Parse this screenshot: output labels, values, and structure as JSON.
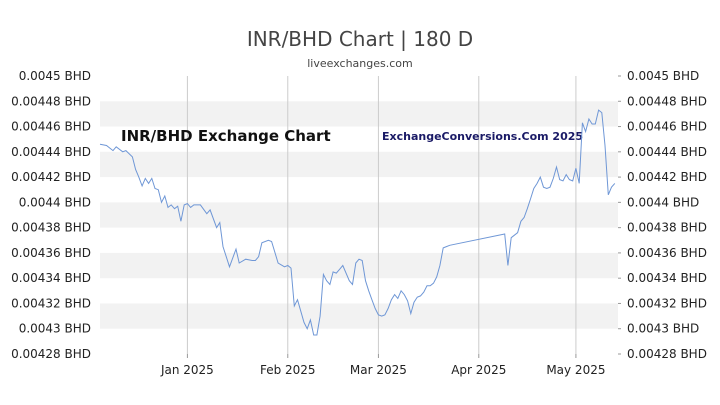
{
  "colors": {
    "line": "#6f97d6",
    "band": "#f2f2f2",
    "grid": "#cccccc",
    "text": "#222222"
  },
  "chart_data": {
    "type": "line",
    "title": "INR/BHD Chart | 180 D",
    "subtitle": "liveexchanges.com",
    "watermark_left": "INR/BHD Exchange Chart",
    "watermark_right": "ExchangeConversions.Com 2025",
    "x_labels": [
      "Jan 2025",
      "Feb 2025",
      "Mar 2025",
      "Apr 2025",
      "May 2025"
    ],
    "x_start": "2024-12-05",
    "x_end": "2025-05-14",
    "y_ticks": [
      "0.0045 BHD",
      "0.00448 BHD",
      "0.00446 BHD",
      "0.00444 BHD",
      "0.00442 BHD",
      "0.0044 BHD",
      "0.00438 BHD",
      "0.00436 BHD",
      "0.00434 BHD",
      "0.00432 BHD",
      "0.0043 BHD",
      "0.00428 BHD"
    ],
    "ylim": [
      0.00428,
      0.0045
    ],
    "grid": true,
    "series": [
      {
        "values": [
          [
            "2024-12-05",
            0.004446
          ],
          [
            "2024-12-07",
            0.004445
          ],
          [
            "2024-12-09",
            0.004441
          ],
          [
            "2024-12-10",
            0.004444
          ],
          [
            "2024-12-12",
            0.00444
          ],
          [
            "2024-12-13",
            0.004441
          ],
          [
            "2024-12-15",
            0.004436
          ],
          [
            "2024-12-16",
            0.004426
          ],
          [
            "2024-12-17",
            0.00442
          ],
          [
            "2024-12-18",
            0.004413
          ],
          [
            "2024-12-19",
            0.004419
          ],
          [
            "2024-12-20",
            0.004415
          ],
          [
            "2024-12-21",
            0.004419
          ],
          [
            "2024-12-22",
            0.004411
          ],
          [
            "2024-12-23",
            0.00441
          ],
          [
            "2024-12-24",
            0.0044
          ],
          [
            "2024-12-25",
            0.004405
          ],
          [
            "2024-12-26",
            0.004396
          ],
          [
            "2024-12-27",
            0.004398
          ],
          [
            "2024-12-28",
            0.004395
          ],
          [
            "2024-12-29",
            0.004397
          ],
          [
            "2024-12-30",
            0.004385
          ],
          [
            "2024-12-31",
            0.004398
          ],
          [
            "2025-01-01",
            0.004399
          ],
          [
            "2025-01-02",
            0.004396
          ],
          [
            "2025-01-03",
            0.004398
          ],
          [
            "2025-01-05",
            0.004398
          ],
          [
            "2025-01-07",
            0.004391
          ],
          [
            "2025-01-08",
            0.004394
          ],
          [
            "2025-01-10",
            0.00438
          ],
          [
            "2025-01-11",
            0.004384
          ],
          [
            "2025-01-12",
            0.004365
          ],
          [
            "2025-01-14",
            0.004349
          ],
          [
            "2025-01-16",
            0.004363
          ],
          [
            "2025-01-17",
            0.004352
          ],
          [
            "2025-01-19",
            0.004355
          ],
          [
            "2025-01-21",
            0.004354
          ],
          [
            "2025-01-22",
            0.004354
          ],
          [
            "2025-01-23",
            0.004357
          ],
          [
            "2025-01-24",
            0.004368
          ],
          [
            "2025-01-26",
            0.00437
          ],
          [
            "2025-01-27",
            0.004369
          ],
          [
            "2025-01-29",
            0.004352
          ],
          [
            "2025-01-31",
            0.004349
          ],
          [
            "2025-02-01",
            0.00435
          ],
          [
            "2025-02-02",
            0.004348
          ],
          [
            "2025-02-03",
            0.004318
          ],
          [
            "2025-02-04",
            0.004323
          ],
          [
            "2025-02-06",
            0.004305
          ],
          [
            "2025-02-07",
            0.0043
          ],
          [
            "2025-02-08",
            0.004307
          ],
          [
            "2025-02-09",
            0.004295
          ],
          [
            "2025-02-10",
            0.004295
          ],
          [
            "2025-02-11",
            0.00431
          ],
          [
            "2025-02-12",
            0.004343
          ],
          [
            "2025-02-13",
            0.004338
          ],
          [
            "2025-02-14",
            0.004335
          ],
          [
            "2025-02-15",
            0.004345
          ],
          [
            "2025-02-16",
            0.004344
          ],
          [
            "2025-02-17",
            0.004347
          ],
          [
            "2025-02-18",
            0.00435
          ],
          [
            "2025-02-20",
            0.004338
          ],
          [
            "2025-02-21",
            0.004335
          ],
          [
            "2025-02-22",
            0.004352
          ],
          [
            "2025-02-23",
            0.004355
          ],
          [
            "2025-02-24",
            0.004354
          ],
          [
            "2025-02-25",
            0.004338
          ],
          [
            "2025-02-26",
            0.00433
          ],
          [
            "2025-02-27",
            0.004323
          ],
          [
            "2025-02-28",
            0.004316
          ],
          [
            "2025-03-01",
            0.004311
          ],
          [
            "2025-03-02",
            0.00431
          ],
          [
            "2025-03-03",
            0.004311
          ],
          [
            "2025-03-04",
            0.004316
          ],
          [
            "2025-03-05",
            0.004323
          ],
          [
            "2025-03-06",
            0.004327
          ],
          [
            "2025-03-07",
            0.004324
          ],
          [
            "2025-03-08",
            0.00433
          ],
          [
            "2025-03-09",
            0.004327
          ],
          [
            "2025-03-10",
            0.004322
          ],
          [
            "2025-03-11",
            0.004312
          ],
          [
            "2025-03-12",
            0.004321
          ],
          [
            "2025-03-13",
            0.004325
          ],
          [
            "2025-03-14",
            0.004326
          ],
          [
            "2025-03-15",
            0.004329
          ],
          [
            "2025-03-16",
            0.004334
          ],
          [
            "2025-03-17",
            0.004334
          ],
          [
            "2025-03-18",
            0.004336
          ],
          [
            "2025-03-19",
            0.004341
          ],
          [
            "2025-03-20",
            0.00435
          ],
          [
            "2025-03-21",
            0.004364
          ],
          [
            "2025-03-22",
            0.004365
          ],
          [
            "2025-03-23",
            0.004366
          ],
          [
            "2025-04-09",
            0.004375
          ],
          [
            "2025-04-10",
            0.00435
          ],
          [
            "2025-04-11",
            0.004372
          ],
          [
            "2025-04-12",
            0.004374
          ],
          [
            "2025-04-13",
            0.004376
          ],
          [
            "2025-04-14",
            0.004385
          ],
          [
            "2025-04-15",
            0.004388
          ],
          [
            "2025-04-16",
            0.004395
          ],
          [
            "2025-04-17",
            0.004403
          ],
          [
            "2025-04-18",
            0.004411
          ],
          [
            "2025-04-19",
            0.004415
          ],
          [
            "2025-04-20",
            0.00442
          ],
          [
            "2025-04-21",
            0.004412
          ],
          [
            "2025-04-22",
            0.004411
          ],
          [
            "2025-04-23",
            0.004412
          ],
          [
            "2025-04-24",
            0.004419
          ],
          [
            "2025-04-25",
            0.004428
          ],
          [
            "2025-04-26",
            0.004418
          ],
          [
            "2025-04-27",
            0.004417
          ],
          [
            "2025-04-28",
            0.004422
          ],
          [
            "2025-04-29",
            0.004418
          ],
          [
            "2025-04-30",
            0.004417
          ],
          [
            "2025-05-01",
            0.004427
          ],
          [
            "2025-05-02",
            0.004415
          ],
          [
            "2025-05-03",
            0.004463
          ],
          [
            "2025-05-04",
            0.004456
          ],
          [
            "2025-05-05",
            0.004466
          ],
          [
            "2025-05-06",
            0.004462
          ],
          [
            "2025-05-07",
            0.004462
          ],
          [
            "2025-05-08",
            0.004473
          ],
          [
            "2025-05-09",
            0.004471
          ],
          [
            "2025-05-10",
            0.004445
          ],
          [
            "2025-05-11",
            0.004406
          ],
          [
            "2025-05-12",
            0.004412
          ],
          [
            "2025-05-13",
            0.004415
          ]
        ]
      }
    ]
  }
}
